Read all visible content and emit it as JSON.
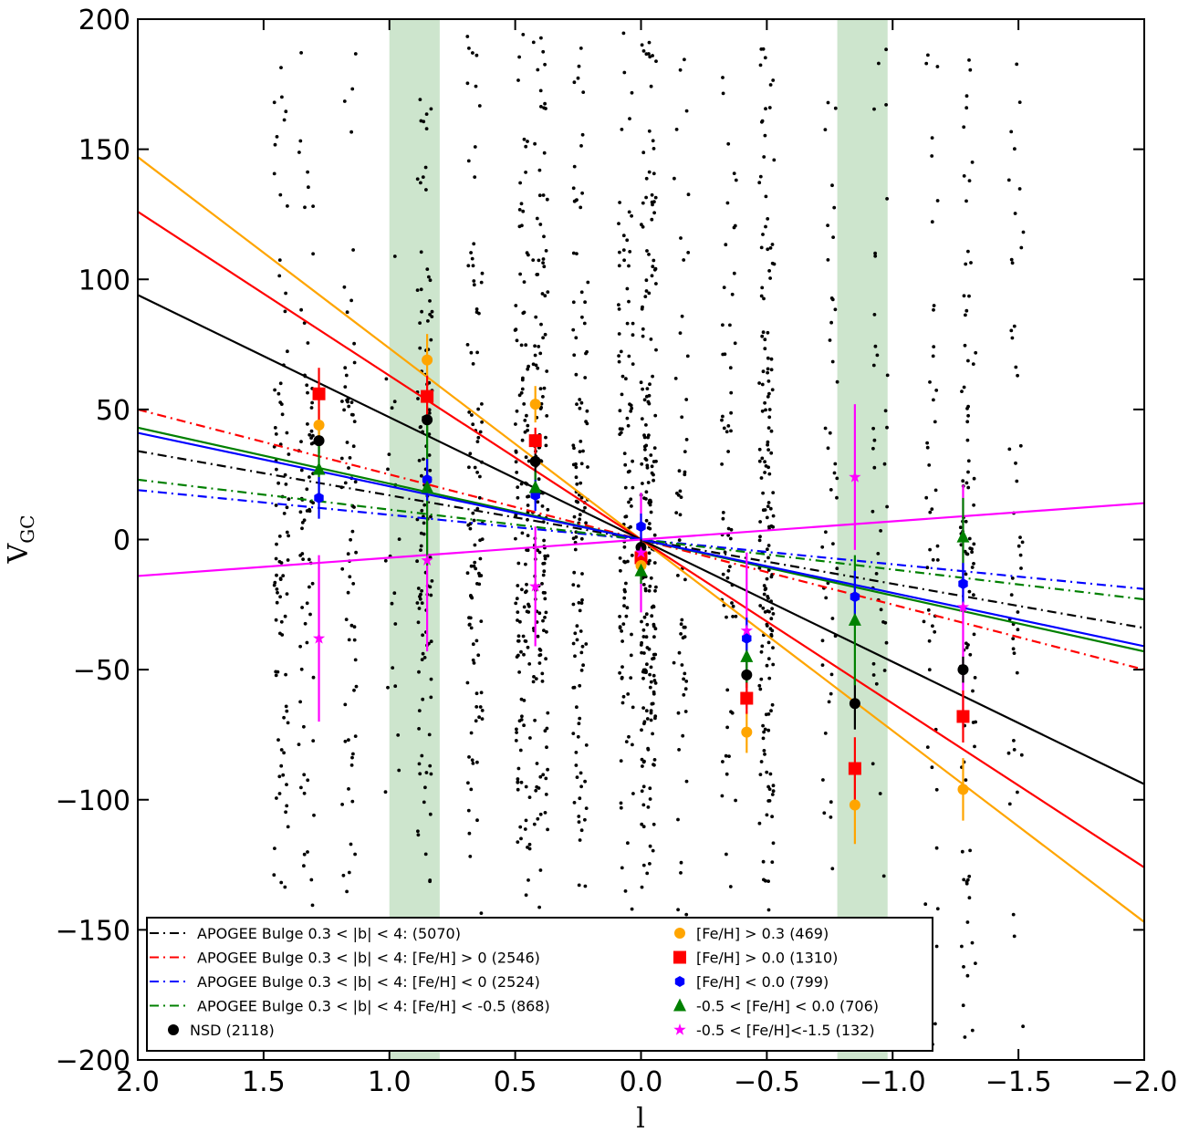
{
  "chart_data": {
    "type": "scatter",
    "title": "",
    "xlabel": "l",
    "ylabel": "V",
    "ylabel_sub": "GC",
    "xlim": [
      2.0,
      -2.0
    ],
    "ylim": [
      -200,
      200
    ],
    "xticks": [
      2.0,
      1.5,
      1.0,
      0.5,
      0.0,
      -0.5,
      -1.0,
      -1.5,
      -2.0
    ],
    "xtick_labels": [
      "2.0",
      "1.5",
      "1.0",
      "0.5",
      "0.0",
      "−0.5",
      "−1.0",
      "−1.5",
      "−2.0"
    ],
    "yticks": [
      200,
      150,
      100,
      50,
      0,
      -50,
      -100,
      -150,
      -200
    ],
    "ytick_labels": [
      "200",
      "150",
      "100",
      "50",
      "0",
      "−50",
      "−100",
      "−150",
      "−200"
    ],
    "grid": false,
    "legend_position": "bottom-center",
    "shaded_bands": [
      {
        "x0": 0.8,
        "x1": 1.0,
        "color": "#cde5cd"
      },
      {
        "x0": -0.78,
        "x1": -0.98,
        "color": "#cde5cd"
      }
    ],
    "scatter_columns": [
      {
        "x": 1.43,
        "n": 90
      },
      {
        "x": 1.33,
        "n": 75
      },
      {
        "x": 1.16,
        "n": 70
      },
      {
        "x": 0.99,
        "n": 20
      },
      {
        "x": 0.86,
        "n": 120
      },
      {
        "x": 0.66,
        "n": 110
      },
      {
        "x": 0.47,
        "n": 130
      },
      {
        "x": 0.4,
        "n": 150
      },
      {
        "x": 0.24,
        "n": 120
      },
      {
        "x": 0.06,
        "n": 110
      },
      {
        "x": -0.03,
        "n": 220
      },
      {
        "x": -0.16,
        "n": 60
      },
      {
        "x": -0.35,
        "n": 60
      },
      {
        "x": -0.5,
        "n": 170
      },
      {
        "x": -0.75,
        "n": 45
      },
      {
        "x": -0.95,
        "n": 40
      },
      {
        "x": -1.15,
        "n": 45
      },
      {
        "x": -1.3,
        "n": 90
      },
      {
        "x": -1.49,
        "n": 45
      }
    ],
    "fit_lines": [
      {
        "name": "APOGEE Bulge 0.3 < |b| < 4:  (5070)",
        "color": "#000000",
        "style": "dashdot",
        "slope": 17,
        "legend": true
      },
      {
        "name": "APOGEE Bulge 0.3 < |b| < 4:  [Fe/H] > 0  (2546)",
        "color": "#ff0000",
        "style": "dashdot",
        "slope": 25,
        "legend": true
      },
      {
        "name": "APOGEE Bulge 0.3 < |b| < 4: [Fe/H] < 0  (2524)",
        "color": "#0000ff",
        "style": "dashdot",
        "slope": 9.5,
        "legend": true
      },
      {
        "name": "APOGEE Bulge 0.3 < |b| < 4: [Fe/H] < -0.5  (868)",
        "color": "#008000",
        "style": "dashdot",
        "slope": 11.5,
        "legend": true
      },
      {
        "color": "#ffa500",
        "style": "solid",
        "slope": 73.5
      },
      {
        "color": "#ff0000",
        "style": "solid",
        "slope": 63
      },
      {
        "color": "#000000",
        "style": "solid",
        "slope": 47
      },
      {
        "color": "#008000",
        "style": "solid",
        "slope": 21.5
      },
      {
        "color": "#0000ff",
        "style": "solid",
        "slope": 20.5
      },
      {
        "color": "#ff00ff",
        "style": "solid",
        "slope": -7
      }
    ],
    "series": [
      {
        "name": "NSD (2118)",
        "color": "#000000",
        "marker": "circle",
        "x": [
          1.28,
          0.85,
          0.42,
          0.0,
          -0.42,
          -0.85,
          -1.28
        ],
        "y": [
          38,
          46,
          30,
          -3,
          -52,
          -63,
          -50
        ],
        "err": [
          [
            -5,
            5
          ],
          [
            -5,
            5
          ],
          [
            -8,
            5
          ],
          [
            -4,
            4
          ],
          [
            -5,
            5
          ],
          [
            -10,
            10
          ],
          [
            -5,
            5
          ]
        ]
      },
      {
        "name": "[Fe/H] > 0.3 (469)",
        "color": "#ffa500",
        "marker": "circle",
        "x": [
          1.28,
          0.85,
          0.42,
          0.0,
          -0.42,
          -0.85,
          -1.28
        ],
        "y": [
          44,
          69,
          52,
          -10,
          -74,
          -102,
          -96
        ],
        "err": [
          [
            -6,
            6
          ],
          [
            -10,
            10
          ],
          [
            -7,
            7
          ],
          [
            -4,
            4
          ],
          [
            -8,
            8
          ],
          [
            -15,
            15
          ],
          [
            -12,
            12
          ]
        ]
      },
      {
        "name": "[Fe/H] > 0.0 (1310)",
        "color": "#ff0000",
        "marker": "square",
        "x": [
          1.28,
          0.85,
          0.42,
          0.0,
          -0.42,
          -0.85,
          -1.28
        ],
        "y": [
          56,
          55,
          38,
          -7,
          -61,
          -88,
          -68
        ],
        "err": [
          [
            -10,
            10
          ],
          [
            -8,
            8
          ],
          [
            -5,
            5
          ],
          [
            -4,
            4
          ],
          [
            -6,
            6
          ],
          [
            -12,
            12
          ],
          [
            -10,
            10
          ]
        ]
      },
      {
        "name": "[Fe/H] < 0.0  (799)",
        "color": "#0000ff",
        "marker": "hexagon",
        "x": [
          1.28,
          0.85,
          0.42,
          0.0,
          -0.42,
          -0.85,
          -1.28
        ],
        "y": [
          16,
          23,
          17,
          5,
          -38,
          -22,
          -17
        ],
        "err": [
          [
            -8,
            8
          ],
          [
            -8,
            8
          ],
          [
            -6,
            6
          ],
          [
            -5,
            5
          ],
          [
            -8,
            8
          ],
          [
            -10,
            10
          ],
          [
            -8,
            8
          ]
        ]
      },
      {
        "name": "-0.5 < [Fe/H] < 0.0  (706)",
        "color": "#008000",
        "marker": "triangle",
        "x": [
          1.28,
          0.85,
          0.42,
          0.0,
          -0.42,
          -0.85,
          -1.28
        ],
        "y": [
          27,
          20,
          20,
          -12,
          -45,
          -31,
          1
        ],
        "err": [
          [
            -12,
            12
          ],
          [
            -30,
            30
          ],
          [
            -6,
            6
          ],
          [
            -5,
            5
          ],
          [
            -10,
            10
          ],
          [
            -25,
            25
          ],
          [
            -15,
            15
          ]
        ]
      },
      {
        "name": "-0.5 < [Fe/H]<-1.5 (132)",
        "color": "#ff00ff",
        "marker": "star",
        "x": [
          1.28,
          0.85,
          0.42,
          0.0,
          -0.42,
          -0.85,
          -1.28
        ],
        "y": [
          -38,
          -8,
          -18,
          -5,
          -35,
          24,
          -26
        ],
        "err": [
          [
            -32,
            32
          ],
          [
            -35,
            35
          ],
          [
            -23,
            23
          ],
          [
            -23,
            23
          ],
          [
            -30,
            30
          ],
          [
            -28,
            28
          ],
          [
            -47,
            47
          ]
        ]
      }
    ]
  }
}
